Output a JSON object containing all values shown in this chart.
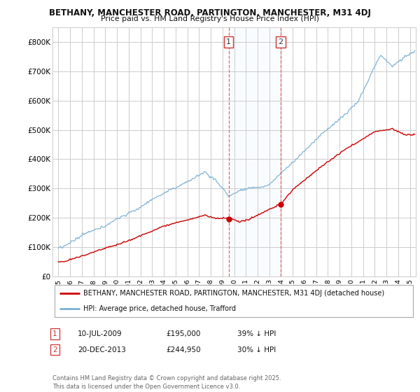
{
  "title1": "BETHANY, MANCHESTER ROAD, PARTINGTON, MANCHESTER, M31 4DJ",
  "title2": "Price paid vs. HM Land Registry's House Price Index (HPI)",
  "legend_label_red": "BETHANY, MANCHESTER ROAD, PARTINGTON, MANCHESTER, M31 4DJ (detached house)",
  "legend_label_blue": "HPI: Average price, detached house, Trafford",
  "annotation1_date": "10-JUL-2009",
  "annotation1_price": "£195,000",
  "annotation1_hpi": "39% ↓ HPI",
  "annotation2_date": "20-DEC-2013",
  "annotation2_price": "£244,950",
  "annotation2_hpi": "30% ↓ HPI",
  "footnote": "Contains HM Land Registry data © Crown copyright and database right 2025.\nThis data is licensed under the Open Government Licence v3.0.",
  "vline1_x": 2009.53,
  "vline2_x": 2013.97,
  "marker1_red_x": 2009.53,
  "marker1_red_y": 195000,
  "marker2_red_x": 2013.97,
  "marker2_red_y": 244950,
  "ylim": [
    0,
    850000
  ],
  "xlim": [
    1994.5,
    2025.5
  ],
  "yticks": [
    0,
    100000,
    200000,
    300000,
    400000,
    500000,
    600000,
    700000,
    800000
  ],
  "ylabels": [
    "£0",
    "£100K",
    "£200K",
    "£300K",
    "£400K",
    "£500K",
    "£600K",
    "£700K",
    "£800K"
  ],
  "background_color": "#ffffff",
  "grid_color": "#cccccc",
  "red_color": "#cc0000",
  "blue_color": "#7ab0d4",
  "shade_color": "#ddeeff"
}
